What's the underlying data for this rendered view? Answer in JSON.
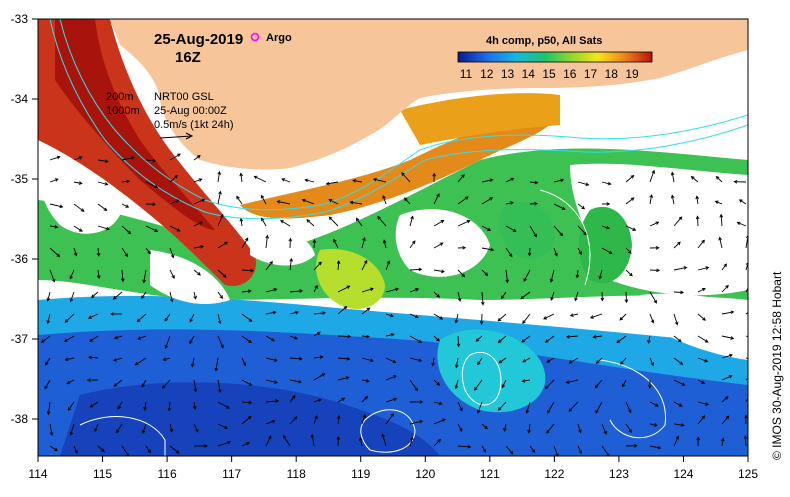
{
  "map": {
    "date": "25-Aug-2019",
    "time": "16Z",
    "argo_label": "Argo",
    "legend_lines": [
      "200m",
      "1000m"
    ],
    "product_lines": [
      "NRT00 GSL",
      "25-Aug 00:00Z",
      "0.5m/s (1kt 24h)"
    ],
    "credit": "© IMOS 30-Aug-2019 12:58 Hobart",
    "colorbar": {
      "title": "4h comp, p50, All Sats",
      "ticks": [
        "11",
        "12",
        "13",
        "14",
        "15",
        "16",
        "17",
        "18",
        "19"
      ]
    },
    "x_ticks": [
      "114",
      "115",
      "116",
      "117",
      "118",
      "119",
      "120",
      "121",
      "122",
      "123",
      "124",
      "125"
    ],
    "y_ticks": [
      "-33",
      "-34",
      "-35",
      "-36",
      "-37",
      "-38"
    ],
    "colors": {
      "land": "#f6c59a",
      "sst_cold": "#1e5fd6",
      "sst_warm": "#c41a0b",
      "isobath": "#2ee0e8",
      "argo": "#ff00ff"
    }
  }
}
